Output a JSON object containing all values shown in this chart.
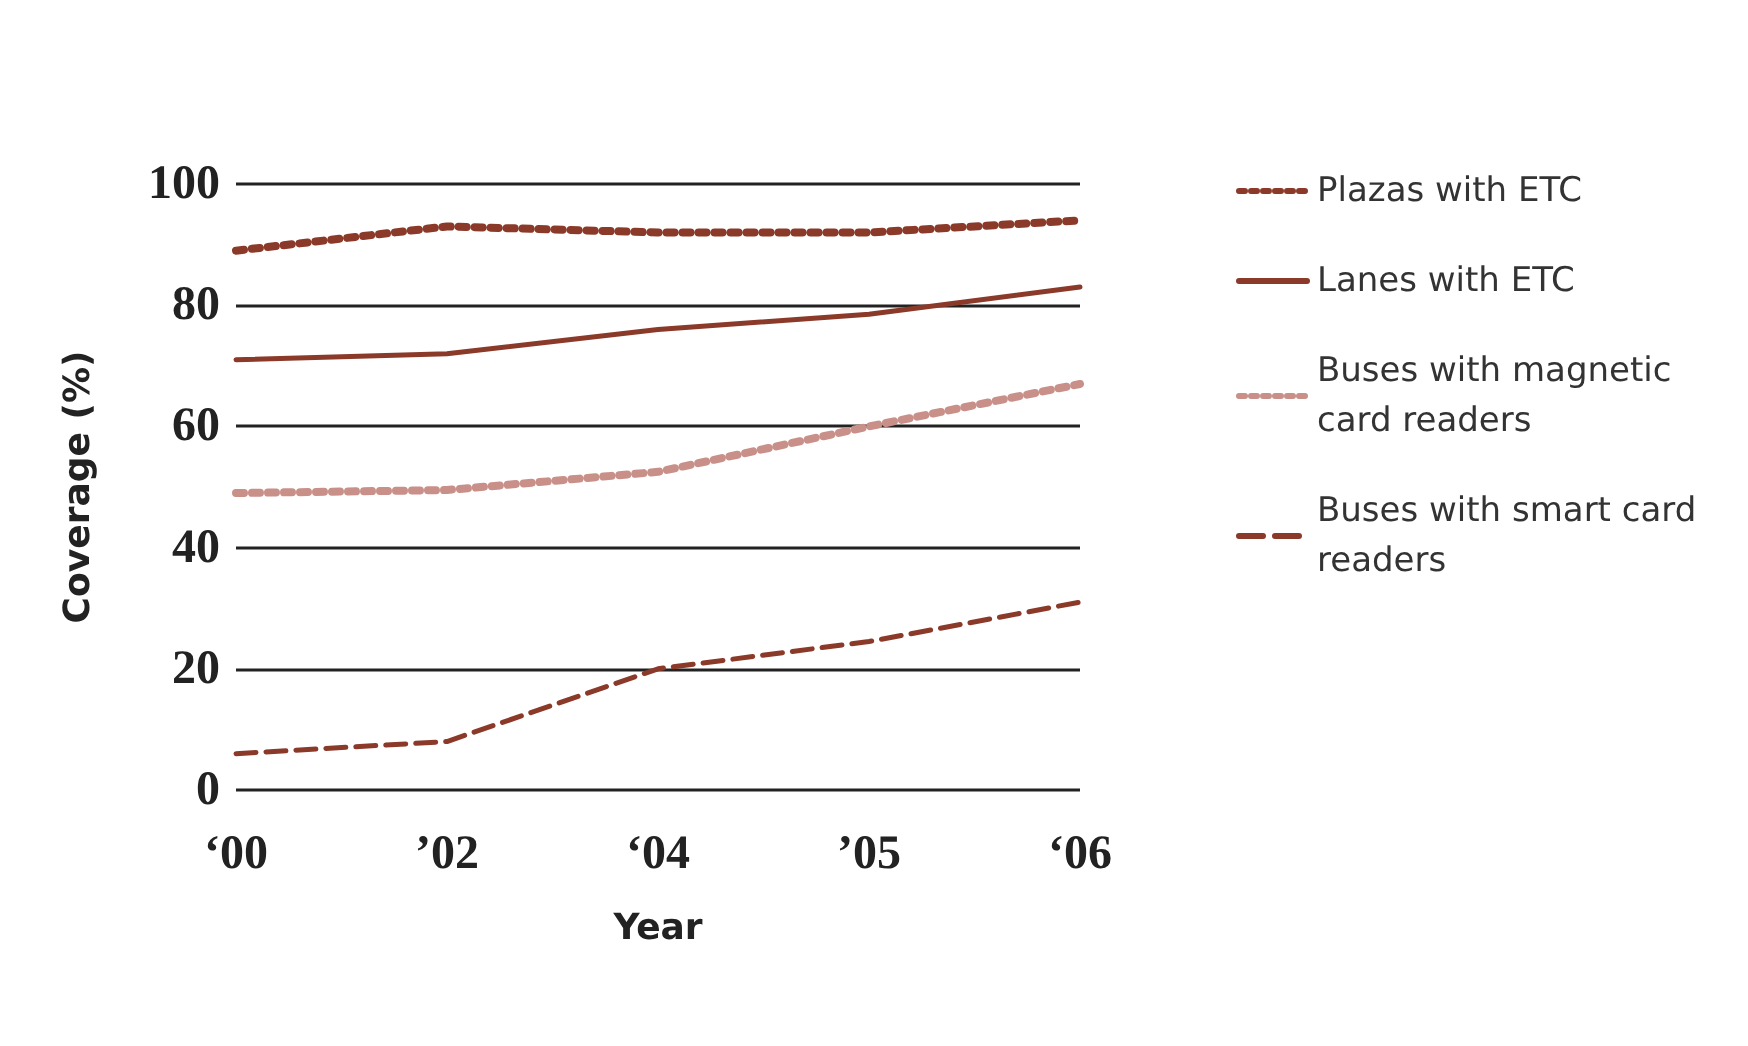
{
  "chart_data": {
    "type": "line",
    "xlabel": "Year",
    "ylabel": "Coverage (%)",
    "categories": [
      "‘00",
      "’02",
      "‘04",
      "’05",
      "‘06"
    ],
    "ylim": [
      0,
      100
    ],
    "yticks": [
      0,
      20,
      40,
      60,
      80,
      100
    ],
    "grid": "y",
    "legend": "right",
    "marker": "none",
    "series": [
      {
        "name": "Plazas with ETC",
        "color": "#8b3a2a",
        "line_style": "dotted",
        "values": [
          89,
          93,
          92,
          92,
          94
        ]
      },
      {
        "name": "Lanes with ETC",
        "color": "#8b3a2a",
        "line_style": "solid",
        "values": [
          71,
          72,
          76,
          78.5,
          83
        ]
      },
      {
        "name": "Buses with magnetic card readers",
        "color": "#c9908a",
        "line_style": "dotted",
        "values": [
          49,
          49.5,
          52.5,
          60,
          67
        ]
      },
      {
        "name": "Buses with smart card readers",
        "color": "#8b3a2a",
        "line_style": "dashed",
        "values": [
          6,
          8,
          20,
          24.5,
          31
        ]
      }
    ]
  }
}
